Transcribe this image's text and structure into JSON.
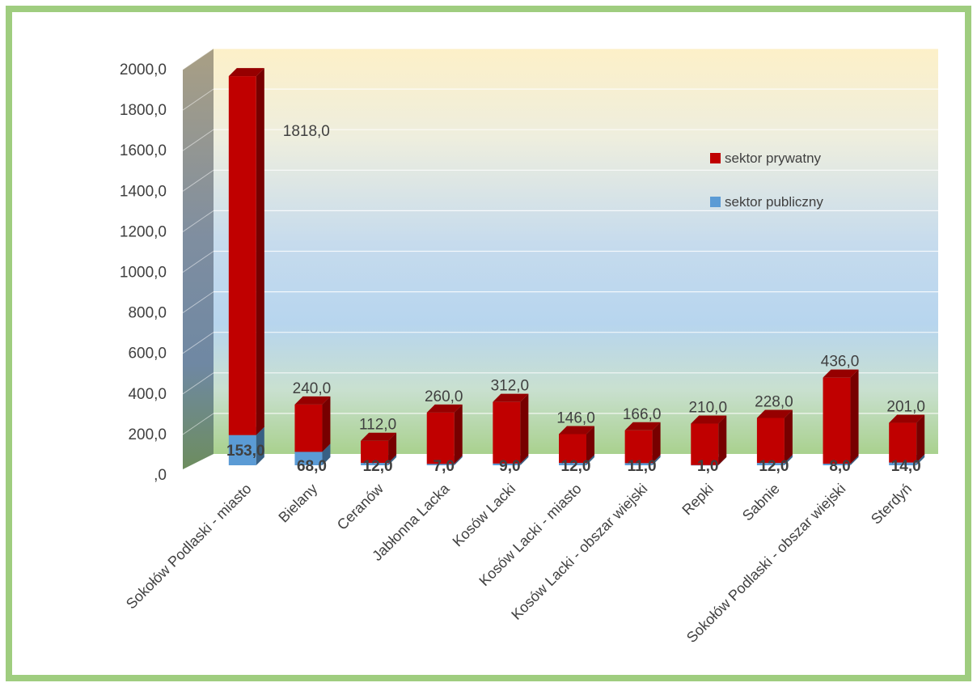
{
  "chart_data": {
    "type": "bar",
    "stacked": true,
    "three_d": true,
    "categories": [
      "Sokołów Podlaski - miasto",
      "Bielany",
      "Ceranów",
      "Jabłonna Lacka",
      "Kosów Lacki",
      "Kosów Lacki - miasto",
      "Kosów Lacki - obszar wiejski",
      "Repki",
      "Sabnie",
      "Sokołów Podlaski - obszar wiejski",
      "Sterdyń"
    ],
    "series": [
      {
        "name": "sektor publiczny",
        "color": "#5b9bd5",
        "values": [
          153,
          68,
          12,
          7,
          9,
          12,
          11,
          1,
          12,
          8,
          14
        ],
        "labels": [
          "153,0",
          "68,0",
          "12,0",
          "7,0",
          "9,0",
          "12,0",
          "11,0",
          "1,0",
          "12,0",
          "8,0",
          "14,0"
        ]
      },
      {
        "name": "sektor prywatny",
        "color": "#c00000",
        "values": [
          1818,
          240,
          112,
          260,
          312,
          146,
          166,
          210,
          228,
          436,
          201
        ],
        "labels": [
          "1818,0",
          "240,0",
          "112,0",
          "260,0",
          "312,0",
          "146,0",
          "166,0",
          "210,0",
          "228,0",
          "436,0",
          "201,0"
        ]
      }
    ],
    "ylim": [
      0,
      2000
    ],
    "y_ticks": [
      {
        "value": 0,
        "label": ",0"
      },
      {
        "value": 200,
        "label": "200,0"
      },
      {
        "value": 400,
        "label": "400,0"
      },
      {
        "value": 600,
        "label": "600,0"
      },
      {
        "value": 800,
        "label": "800,0"
      },
      {
        "value": 1000,
        "label": "1000,0"
      },
      {
        "value": 1200,
        "label": "1200,0"
      },
      {
        "value": 1400,
        "label": "1400,0"
      },
      {
        "value": 1600,
        "label": "1600,0"
      },
      {
        "value": 1800,
        "label": "1800,0"
      },
      {
        "value": 2000,
        "label": "2000,0"
      }
    ],
    "legend": [
      "sektor prywatny",
      "sektor publiczny"
    ],
    "legend_position": "right",
    "grid": true,
    "background": "vertical gradient: pale yellow top, light blue middle, light green bottom",
    "frame_color": "#9fcd7f"
  }
}
